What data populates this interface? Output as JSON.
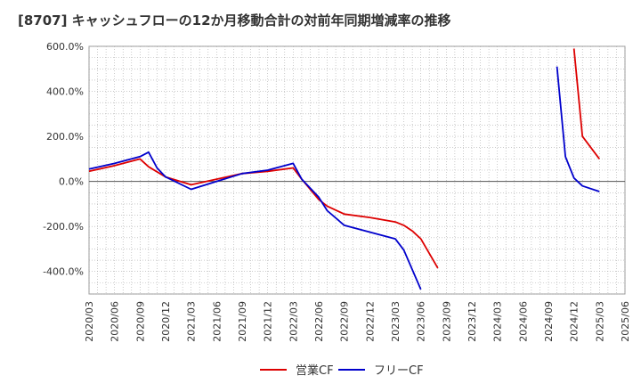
{
  "chart_data": {
    "type": "line",
    "title": "[8707]  キャッシュフローの12か月移動合計の対前年同期増減率の推移",
    "xlabel": "",
    "ylabel": "",
    "ylim": [
      -500,
      600
    ],
    "yticks": [
      600,
      400,
      200,
      0,
      -200,
      -400
    ],
    "ytick_labels": [
      "600.0%",
      "400.0%",
      "200.0%",
      "0.0%",
      "-200.0%",
      "-400.0%"
    ],
    "xticks": [
      "2020/03",
      "2020/06",
      "2020/09",
      "2020/12",
      "2021/03",
      "2021/06",
      "2021/09",
      "2021/12",
      "2022/03",
      "2022/06",
      "2022/09",
      "2022/12",
      "2023/03",
      "2023/06",
      "2023/09",
      "2023/12",
      "2024/03",
      "2024/06",
      "2024/09",
      "2024/12",
      "2025/03",
      "2025/06"
    ],
    "x_start": "2020/03",
    "x_end": "2025/06",
    "legend_position": "bottom",
    "colors": {
      "operating": "#dd0000",
      "free": "#0000cc",
      "grid": "#aaaaaa",
      "zero_line": "#555555"
    },
    "series": [
      {
        "name": "営業CF",
        "color": "#dd0000",
        "segments": [
          [
            [
              "2020/03",
              45
            ],
            [
              "2020/06",
              70
            ],
            [
              "2020/09",
              100
            ],
            [
              "2020/10",
              65
            ],
            [
              "2020/12",
              20
            ],
            [
              "2021/03",
              -15
            ],
            [
              "2021/06",
              10
            ],
            [
              "2021/09",
              35
            ],
            [
              "2021/12",
              45
            ],
            [
              "2022/03",
              60
            ],
            [
              "2022/04",
              10
            ],
            [
              "2022/06",
              -80
            ],
            [
              "2022/07",
              -110
            ],
            [
              "2022/09",
              -145
            ],
            [
              "2022/12",
              -160
            ],
            [
              "2023/03",
              -180
            ],
            [
              "2023/04",
              -195
            ],
            [
              "2023/05",
              -220
            ],
            [
              "2023/06",
              -255
            ],
            [
              "2023/08",
              -385
            ]
          ],
          [
            [
              "2024/12",
              590
            ],
            [
              "2025/01",
              200
            ],
            [
              "2025/03",
              100
            ]
          ]
        ]
      },
      {
        "name": "フリーCF",
        "color": "#0000cc",
        "segments": [
          [
            [
              "2020/03",
              55
            ],
            [
              "2020/06",
              80
            ],
            [
              "2020/09",
              110
            ],
            [
              "2020/10",
              130
            ],
            [
              "2020/11",
              60
            ],
            [
              "2020/12",
              20
            ],
            [
              "2021/03",
              -35
            ],
            [
              "2021/06",
              0
            ],
            [
              "2021/09",
              35
            ],
            [
              "2021/12",
              50
            ],
            [
              "2022/03",
              80
            ],
            [
              "2022/04",
              10
            ],
            [
              "2022/06",
              -70
            ],
            [
              "2022/07",
              -130
            ],
            [
              "2022/09",
              -195
            ],
            [
              "2022/12",
              -225
            ],
            [
              "2023/03",
              -255
            ],
            [
              "2023/04",
              -305
            ],
            [
              "2023/06",
              -480
            ]
          ],
          [
            [
              "2024/10",
              510
            ],
            [
              "2024/11",
              110
            ],
            [
              "2024/12",
              15
            ],
            [
              "2025/01",
              -20
            ],
            [
              "2025/03",
              -45
            ]
          ]
        ]
      }
    ]
  }
}
